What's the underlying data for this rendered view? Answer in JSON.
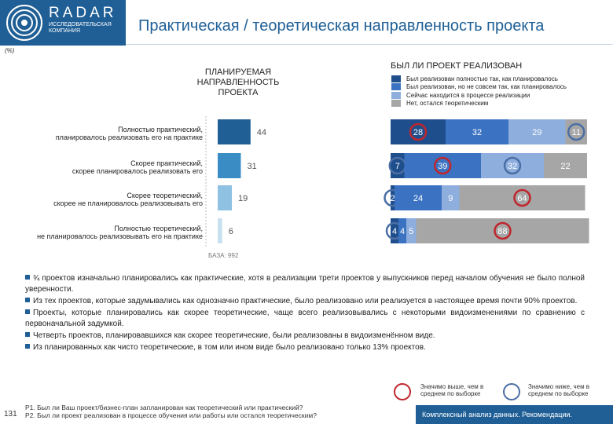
{
  "header": {
    "logo_text": "RADAR",
    "logo_subtitle": "ИССЛЕДОВАТЕЛЬСКАЯ КОМПАНИЯ",
    "title": "Практическая / теоретическая направленность проекта",
    "unit_note": "(%)"
  },
  "chart_data": [
    {
      "type": "bar",
      "orientation": "horizontal",
      "title": "ПЛАНИРУЕМАЯ НАПРАВЛЕННОСТЬ ПРОЕКТА",
      "categories": [
        "Полностью практический, планировалось реализовать его на практике",
        "Скорее практический, скорее планировалось реализовать его",
        "Скорее теоретический, скорее не планировалось реализовывать его",
        "Полностью теоретический, не планировалось реализовывать его на практике"
      ],
      "category_lines": [
        [
          "Полностью практический,",
          "планировалось реализовать его на практике"
        ],
        [
          "Скорее практический,",
          "скорее планировалось реализовать его"
        ],
        [
          "Скорее теоретический,",
          "скорее не планировалось реализовывать его"
        ],
        [
          "Полностью теоретический,",
          "не планировалось реализовывать его на практике"
        ]
      ],
      "values": [
        44,
        31,
        19,
        6
      ],
      "colors": [
        "#1f5f96",
        "#3a8cc4",
        "#8fc1e2",
        "#c8e1f0"
      ],
      "base_note": "БАЗА: 992"
    },
    {
      "type": "bar",
      "stacked": true,
      "orientation": "horizontal",
      "title": "БЫЛ ЛИ ПРОЕКТ РЕАЛИЗОВАН",
      "series": [
        {
          "name": "Был реализован полностью так, как планировалось",
          "color": "#1f4e8c",
          "values": [
            28,
            7,
            2,
            4
          ]
        },
        {
          "name": "Был реализован, но не совсем так, как планировалось",
          "color": "#3b73c2",
          "values": [
            32,
            39,
            24,
            4
          ]
        },
        {
          "name": "Сейчас находится в процессе реализации",
          "color": "#8eaede",
          "values": [
            29,
            32,
            9,
            5
          ]
        },
        {
          "name": "Нет, остался теоретическим",
          "color": "#a6a6a6",
          "values": [
            11,
            22,
            64,
            88
          ]
        }
      ],
      "significance": {
        "higher": [
          [
            0,
            0
          ],
          [
            1,
            1
          ],
          [
            2,
            3
          ],
          [
            3,
            3
          ]
        ],
        "lower": [
          [
            0,
            3
          ],
          [
            1,
            0
          ],
          [
            1,
            2
          ],
          [
            2,
            0
          ],
          [
            3,
            0
          ]
        ]
      }
    }
  ],
  "notes": [
    "¾ проектов изначально планировались как практические, хотя в реализации трети проектов у выпускников перед началом обучения не было полной уверенности.",
    "Из тех проектов, которые задумывались как однозначно практические, было реализовано или реализуется в настоящее время почти 90% проектов.",
    "Проекты, которые планировались как скорее теоретические, чаще всего реализовывались с некоторыми видоизменениями по сравнению с первоначальной задумкой.",
    "Четверть проектов, планировавшихся как скорее теоретические, были реализованы в видоизменённом виде.",
    "Из планированных как чисто теоретические, в том или ином виде было реализовано только 13% проектов."
  ],
  "significance_legend": {
    "higher": "Значимо выше, чем в среднем по выборке",
    "lower": "Значимо ниже, чем в среднем по выборке",
    "higher_color": "#c0262d",
    "lower_color": "#4a6fa5"
  },
  "footer": {
    "page_number": "131",
    "question_1": "P1. Был ли Ваш проект/бизнес-план запланирован как теоретический или практический?",
    "question_2": "P2. Был ли проект реализован в процессе обучения или работы или остался теоретическим?",
    "section": "Комплексный анализ данных. Рекомендации."
  }
}
